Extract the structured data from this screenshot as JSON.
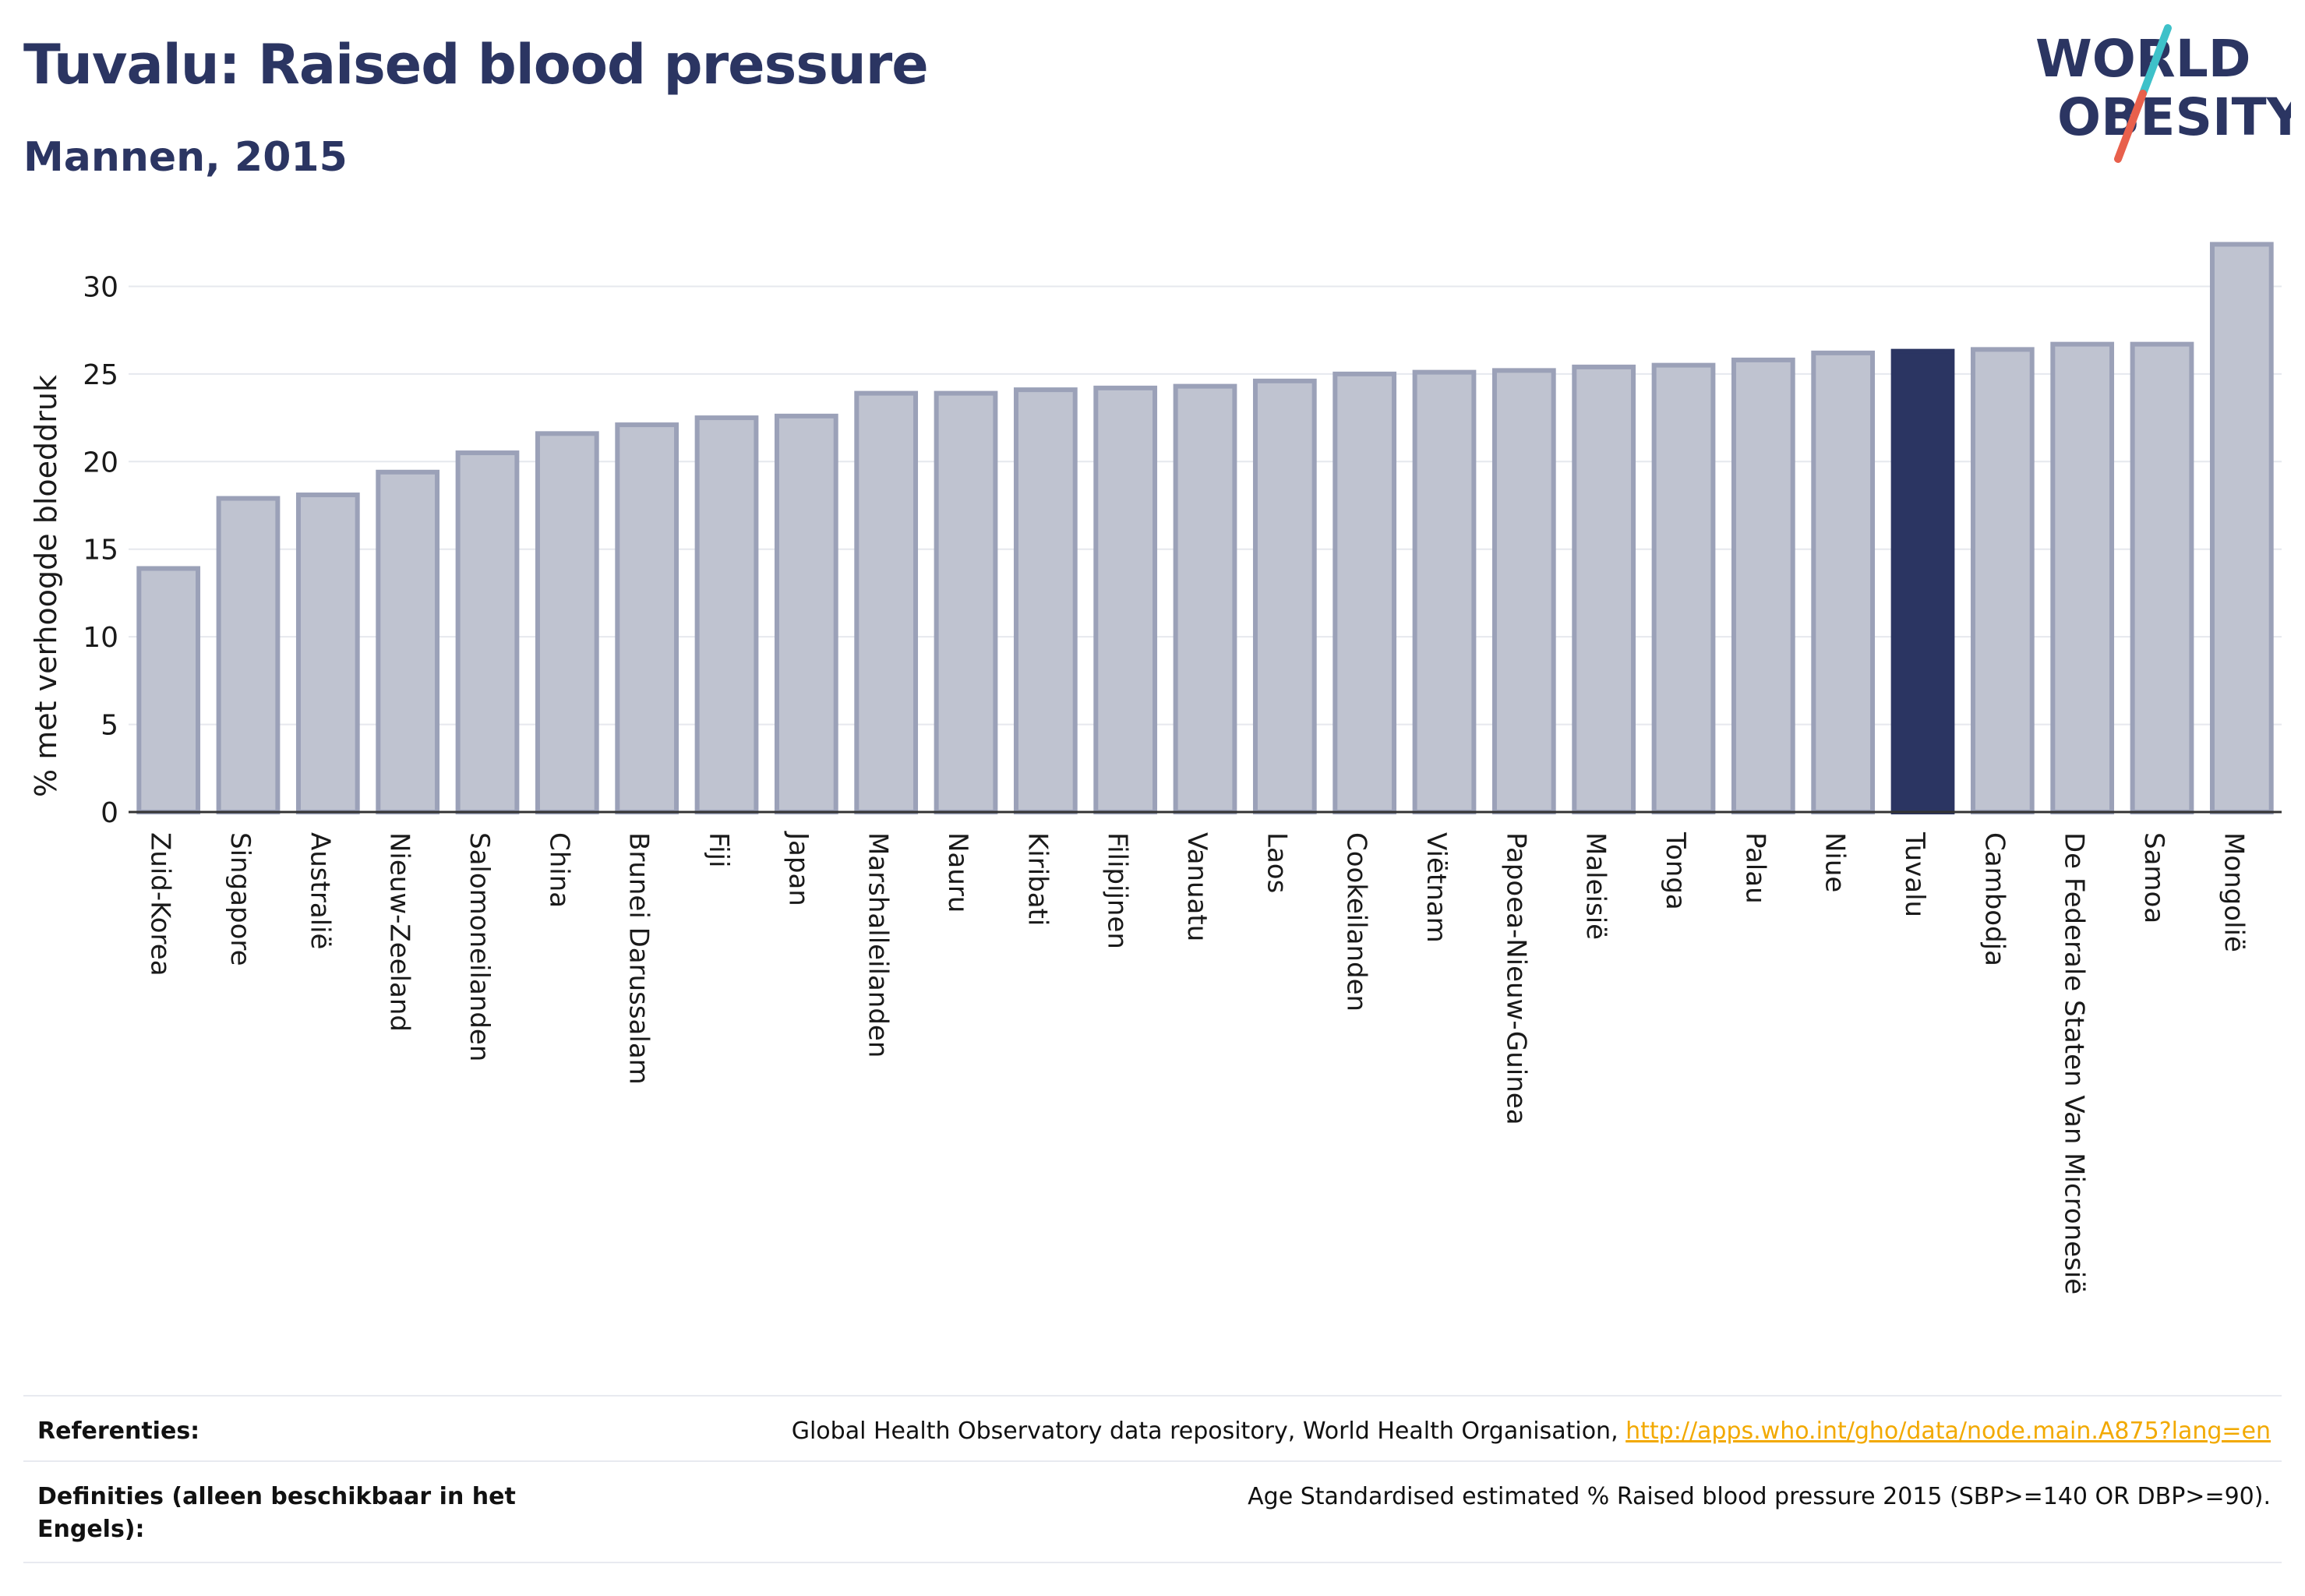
{
  "header": {
    "title": "Tuvalu: Raised blood pressure",
    "subtitle": "Mannen, 2015"
  },
  "logo": {
    "line1": "WORLD",
    "line2": "OBESITY",
    "colors": {
      "text": "#2b3562",
      "slash_teal": "#3ec1c9",
      "slash_red": "#e8604c"
    }
  },
  "colors": {
    "bar_fill": "#bfc3d0",
    "bar_stroke": "#9ba1b8",
    "highlight": "#2b3562",
    "axis_text": "#1a1a1a",
    "grid": "#e6e8ee"
  },
  "chart_data": {
    "type": "bar",
    "ylabel": "% met verhoogde bloeddruk",
    "ylim": [
      0,
      33
    ],
    "yticks": [
      0,
      5,
      10,
      15,
      20,
      25,
      30
    ],
    "grid": true,
    "highlight": "Tuvalu",
    "categories": [
      "Zuid-Korea",
      "Singapore",
      "Australië",
      "Nieuw-Zeeland",
      "Salomoneilanden",
      "China",
      "Brunei Darussalam",
      "Fiji",
      "Japan",
      "Marshalleilanden",
      "Nauru",
      "Kiribati",
      "Filipijnen",
      "Vanuatu",
      "Laos",
      "Cookeilanden",
      "Viëtnam",
      "Papoea-Nieuw-Guinea",
      "Maleisië",
      "Tonga",
      "Palau",
      "Niue",
      "Tuvalu",
      "Cambodja",
      "De Federale Staten Van Micronesië",
      "Samoa",
      "Mongolië"
    ],
    "values": [
      13.9,
      17.9,
      18.1,
      19.4,
      20.5,
      21.6,
      22.1,
      22.5,
      22.6,
      23.9,
      23.9,
      24.1,
      24.2,
      24.3,
      24.6,
      25.0,
      25.1,
      25.2,
      25.4,
      25.5,
      25.8,
      26.2,
      26.3,
      26.4,
      26.7,
      26.7,
      32.4
    ]
  },
  "footer": {
    "references_label": "Referenties:",
    "references_text": "Global Health Observatory data repository, World Health Organisation, ",
    "references_link": "http://apps.who.int/gho/data/node.main.A875?lang=en",
    "definitions_label": "Definities (alleen beschikbaar in het Engels):",
    "definitions_text": "Age Standardised estimated % Raised blood pressure 2015 (SBP>=140 OR DBP>=90)."
  }
}
